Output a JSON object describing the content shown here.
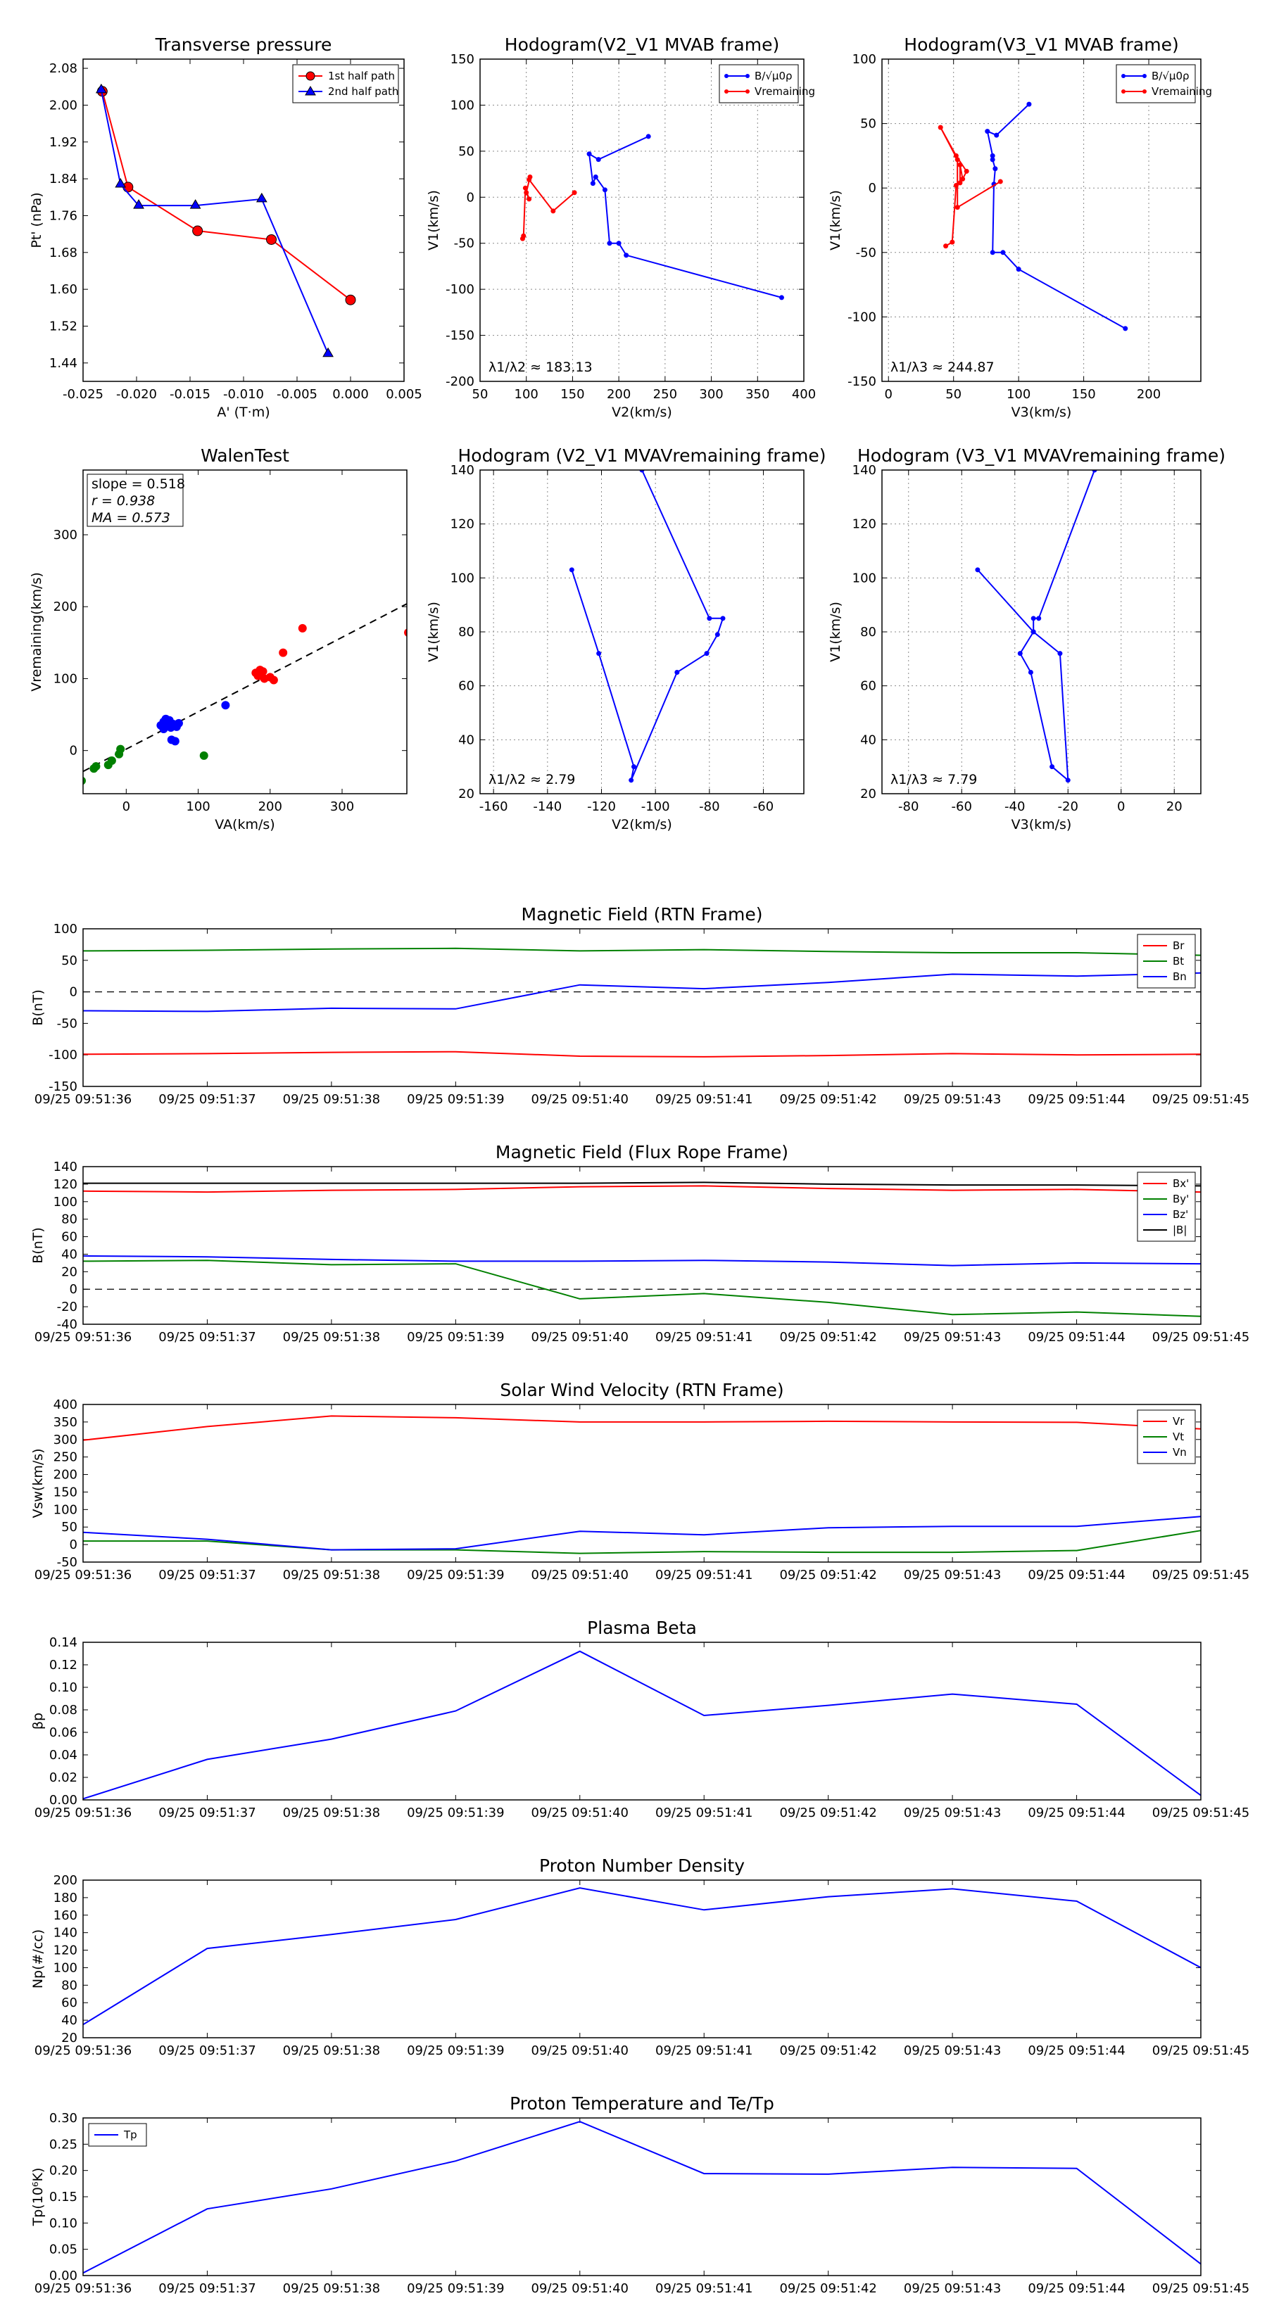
{
  "chart_data": [
    {
      "id": "tp",
      "type": "line",
      "title": "Transverse pressure",
      "xlabel": "A' (T·m)",
      "ylabel": "Pt' (nPa)",
      "xlim": [
        -0.025,
        0.005
      ],
      "ylim": [
        1.4,
        2.1
      ],
      "xticks": [
        "-0.025",
        "-0.020",
        "-0.015",
        "-0.010",
        "-0.005",
        "0.000",
        "0.005"
      ],
      "yticks": [
        "1.44",
        "1.52",
        "1.60",
        "1.68",
        "1.76",
        "1.84",
        "1.92",
        "2.00",
        "2.08"
      ],
      "legend": "top-right",
      "series": [
        {
          "name": "1st half path",
          "color": "#ff0000",
          "marker": "circle",
          "x": [
            -0.0232,
            -0.0208,
            -0.0143,
            -0.0074,
            0.0
          ],
          "y": [
            2.03,
            1.822,
            1.727,
            1.708,
            1.577
          ]
        },
        {
          "name": "2nd half path",
          "color": "#0000ff",
          "marker": "triangle",
          "x": [
            -0.0233,
            -0.0215,
            -0.0198,
            -0.0145,
            -0.0083,
            -0.0021
          ],
          "y": [
            2.033,
            1.828,
            1.782,
            1.782,
            1.796,
            1.46
          ]
        }
      ]
    },
    {
      "id": "h1",
      "type": "line",
      "title": "Hodogram(V2_V1 MVAB frame)",
      "xlabel": "V2(km/s)",
      "ylabel": "V1(km/s)",
      "xlim": [
        50,
        400
      ],
      "ylim": [
        -200,
        150
      ],
      "xticks": [
        "50",
        "100",
        "150",
        "200",
        "250",
        "300",
        "350",
        "400"
      ],
      "yticks": [
        "-200",
        "-150",
        "-100",
        "-50",
        "0",
        "50",
        "100",
        "150"
      ],
      "legend": "top-right",
      "annotation": "λ1/λ2 ≈ 183.13",
      "series": [
        {
          "name": "B/√μ0ρ",
          "color": "#0000ff",
          "x": [
            376,
            208,
            200,
            190,
            185,
            175,
            172,
            168,
            178,
            232
          ],
          "y": [
            -109,
            -63,
            -50,
            -50,
            8,
            22,
            15,
            47,
            41,
            66
          ]
        },
        {
          "name": "Vremaining",
          "color": "#ff0000",
          "x": [
            96,
            97,
            99,
            103,
            100,
            104,
            103,
            129,
            152
          ],
          "y": [
            -45,
            -42,
            10,
            -2,
            5,
            22,
            19,
            -15,
            5
          ]
        }
      ]
    },
    {
      "id": "h2",
      "type": "line",
      "title": "Hodogram(V3_V1 MVAB frame)",
      "xlabel": "V3(km/s)",
      "ylabel": "V1(km/s)",
      "xlim": [
        -5,
        240
      ],
      "ylim": [
        -150,
        100
      ],
      "xticks": [
        "0",
        "50",
        "100",
        "150",
        "200"
      ],
      "yticks": [
        "-150",
        "-100",
        "-50",
        "0",
        "50",
        "100"
      ],
      "legend": "top-right",
      "annotation": "λ1/λ3 ≈ 244.87",
      "series": [
        {
          "name": "B/√μ0ρ",
          "color": "#0000ff",
          "x": [
            182,
            100,
            88,
            80,
            81,
            82,
            80,
            80,
            76,
            83,
            108
          ],
          "y": [
            -109,
            -63,
            -50,
            -50,
            3,
            15,
            22,
            25,
            44,
            41,
            65
          ]
        },
        {
          "name": "Vremaining",
          "color": "#ff0000",
          "x": [
            44,
            49,
            52,
            55,
            55,
            57,
            60,
            52,
            40,
            53,
            53,
            86
          ],
          "y": [
            -45,
            -42,
            2,
            4,
            18,
            7,
            13,
            25,
            47,
            22,
            -15,
            5
          ]
        }
      ]
    },
    {
      "id": "walen",
      "type": "scatter",
      "title": "WalenTest",
      "xlabel": "VA(km/s)",
      "ylabel": "Vremaining(km/s)",
      "xlim": [
        -60,
        390
      ],
      "ylim": [
        -60,
        390
      ],
      "xticks": [
        "0",
        "100",
        "200",
        "300"
      ],
      "yticks": [
        "0",
        "100",
        "200",
        "300"
      ],
      "stats": {
        "slope": "slope = 0.518",
        "r": "r = 0.938",
        "ma": "MA = 0.573"
      },
      "fit": {
        "slope": 0.518,
        "intercept": 2
      },
      "series": [
        {
          "name": "red",
          "color": "#ff0000",
          "x": [
            180,
            186,
            190,
            185,
            192,
            200,
            205,
            183,
            218,
            245,
            392
          ],
          "y": [
            108,
            112,
            110,
            104,
            100,
            102,
            98,
            104,
            136,
            170,
            164
          ]
        },
        {
          "name": "green",
          "color": "#008000",
          "x": [
            -62,
            -45,
            -42,
            -25,
            -20,
            -10,
            -8,
            108
          ],
          "y": [
            -42,
            -25,
            -22,
            -20,
            -14,
            -5,
            2,
            -7
          ]
        },
        {
          "name": "blue",
          "color": "#0000ff",
          "x": [
            48,
            52,
            55,
            57,
            60,
            62,
            65,
            70,
            52,
            62,
            68,
            73,
            138,
            63,
            68
          ],
          "y": [
            35,
            40,
            44,
            38,
            42,
            35,
            37,
            33,
            30,
            32,
            36,
            38,
            63,
            15,
            13
          ]
        }
      ]
    },
    {
      "id": "h3",
      "type": "line",
      "title": "Hodogram (V2_V1 MVAVremaining frame)",
      "xlabel": "V2(km/s)",
      "ylabel": "V1(km/s)",
      "xlim": [
        -165,
        -45
      ],
      "ylim": [
        20,
        140
      ],
      "xticks": [
        "-160",
        "-140",
        "-120",
        "-100",
        "-80",
        "-60"
      ],
      "yticks": [
        "20",
        "40",
        "60",
        "80",
        "100",
        "120",
        "140"
      ],
      "annotation": "λ1/λ2 ≈ 2.79",
      "series": [
        {
          "name": "B",
          "color": "#0000ff",
          "x": [
            -131,
            -121,
            -108,
            -109,
            -92,
            -81,
            -77,
            -75,
            -80,
            -105
          ],
          "y": [
            103,
            72,
            30,
            25,
            65,
            72,
            79,
            85,
            85,
            140
          ]
        }
      ]
    },
    {
      "id": "h4",
      "type": "line",
      "title": "Hodogram (V3_V1 MVAVremaining frame)",
      "xlabel": "V3(km/s)",
      "ylabel": "V1(km/s)",
      "xlim": [
        -90,
        30
      ],
      "ylim": [
        20,
        140
      ],
      "xticks": [
        "-80",
        "-60",
        "-40",
        "-20",
        "0",
        "20"
      ],
      "yticks": [
        "20",
        "40",
        "60",
        "80",
        "100",
        "120",
        "140"
      ],
      "annotation": "λ1/λ3 ≈ 7.79",
      "series": [
        {
          "name": "B",
          "color": "#0000ff",
          "x": [
            -54,
            -33,
            -23,
            -20,
            -26,
            -34,
            -38,
            -33,
            -33,
            -31,
            -10
          ],
          "y": [
            103,
            80,
            72,
            25,
            30,
            65,
            72,
            80,
            85,
            85,
            140
          ]
        }
      ]
    },
    {
      "id": "ts1",
      "type": "line",
      "title": "Magnetic Field (RTN Frame)",
      "ylabel": "B(nT)",
      "ylim": [
        -150,
        100
      ],
      "yticks": [
        "-150",
        "-100",
        "-50",
        "0",
        "50",
        "100"
      ],
      "zero_line": true,
      "legend": "top-right",
      "categories": [
        "09/25 09:51:36",
        "09/25 09:51:37",
        "09/25 09:51:38",
        "09/25 09:51:39",
        "09/25 09:51:40",
        "09/25 09:51:41",
        "09/25 09:51:42",
        "09/25 09:51:43",
        "09/25 09:51:44",
        "09/25 09:51:45"
      ],
      "series": [
        {
          "name": "Br",
          "color": "#ff0000",
          "values": [
            -99,
            -98,
            -96,
            -95,
            -102,
            -103,
            -101,
            -98,
            -100,
            -99
          ]
        },
        {
          "name": "Bt",
          "color": "#008000",
          "values": [
            65,
            66,
            68,
            69,
            65,
            67,
            64,
            62,
            62,
            58
          ]
        },
        {
          "name": "Bn",
          "color": "#0000ff",
          "values": [
            -30,
            -31,
            -26,
            -27,
            11,
            5,
            15,
            28,
            25,
            30
          ]
        }
      ]
    },
    {
      "id": "ts2",
      "type": "line",
      "title": "Magnetic Field (Flux Rope Frame)",
      "ylabel": "B(nT)",
      "ylim": [
        -40,
        140
      ],
      "yticks": [
        "-40",
        "-20",
        "0",
        "20",
        "40",
        "60",
        "80",
        "100",
        "120",
        "140"
      ],
      "zero_line": true,
      "legend": "top-right",
      "categories": [
        "09/25 09:51:36",
        "09/25 09:51:37",
        "09/25 09:51:38",
        "09/25 09:51:39",
        "09/25 09:51:40",
        "09/25 09:51:41",
        "09/25 09:51:42",
        "09/25 09:51:43",
        "09/25 09:51:44",
        "09/25 09:51:45"
      ],
      "series": [
        {
          "name": "Bx'",
          "color": "#ff0000",
          "values": [
            112,
            111,
            113,
            114,
            117,
            118,
            115,
            113,
            114,
            111
          ]
        },
        {
          "name": "By'",
          "color": "#008000",
          "values": [
            32,
            33,
            28,
            29,
            -11,
            -5,
            -15,
            -29,
            -26,
            -31
          ]
        },
        {
          "name": "Bz'",
          "color": "#0000ff",
          "values": [
            38,
            37,
            34,
            32,
            32,
            33,
            31,
            27,
            30,
            29
          ]
        },
        {
          "name": "|B|",
          "color": "#000000",
          "values": [
            121,
            121,
            121,
            121,
            121,
            122,
            120,
            119,
            119,
            118
          ]
        }
      ]
    },
    {
      "id": "ts3",
      "type": "line",
      "title": "Solar Wind Velocity (RTN Frame)",
      "ylabel": "Vsw(km/s)",
      "ylim": [
        -50,
        400
      ],
      "yticks": [
        "-50",
        "0",
        "50",
        "100",
        "150",
        "200",
        "250",
        "300",
        "350",
        "400"
      ],
      "legend": "top-right",
      "categories": [
        "09/25 09:51:36",
        "09/25 09:51:37",
        "09/25 09:51:38",
        "09/25 09:51:39",
        "09/25 09:51:40",
        "09/25 09:51:41",
        "09/25 09:51:42",
        "09/25 09:51:43",
        "09/25 09:51:44",
        "09/25 09:51:45"
      ],
      "series": [
        {
          "name": "Vr",
          "color": "#ff0000",
          "values": [
            298,
            337,
            367,
            362,
            350,
            350,
            352,
            350,
            349,
            330
          ]
        },
        {
          "name": "Vt",
          "color": "#008000",
          "values": [
            10,
            10,
            -15,
            -15,
            -25,
            -20,
            -22,
            -22,
            -17,
            40
          ]
        },
        {
          "name": "Vn",
          "color": "#0000ff",
          "values": [
            35,
            15,
            -15,
            -12,
            38,
            28,
            48,
            52,
            52,
            80
          ]
        }
      ]
    },
    {
      "id": "ts4",
      "type": "line",
      "title": "Plasma Beta",
      "ylabel": "βp",
      "ylim": [
        0,
        0.14
      ],
      "yticks": [
        "0.00",
        "0.02",
        "0.04",
        "0.06",
        "0.08",
        "0.10",
        "0.12",
        "0.14"
      ],
      "categories": [
        "09/25 09:51:36",
        "09/25 09:51:37",
        "09/25 09:51:38",
        "09/25 09:51:39",
        "09/25 09:51:40",
        "09/25 09:51:41",
        "09/25 09:51:42",
        "09/25 09:51:43",
        "09/25 09:51:44",
        "09/25 09:51:45"
      ],
      "series": [
        {
          "name": "beta",
          "color": "#0000ff",
          "values": [
            0.001,
            0.036,
            0.054,
            0.079,
            0.132,
            0.075,
            0.084,
            0.094,
            0.085,
            0.004
          ]
        }
      ]
    },
    {
      "id": "ts5",
      "type": "line",
      "title": "Proton Number Density",
      "ylabel": "Np(#/cc)",
      "ylim": [
        20,
        200
      ],
      "yticks": [
        "20",
        "40",
        "60",
        "80",
        "100",
        "120",
        "140",
        "160",
        "180",
        "200"
      ],
      "categories": [
        "09/25 09:51:36",
        "09/25 09:51:37",
        "09/25 09:51:38",
        "09/25 09:51:39",
        "09/25 09:51:40",
        "09/25 09:51:41",
        "09/25 09:51:42",
        "09/25 09:51:43",
        "09/25 09:51:44",
        "09/25 09:51:45"
      ],
      "series": [
        {
          "name": "Np",
          "color": "#0000ff",
          "values": [
            35,
            122,
            138,
            155,
            191,
            166,
            181,
            190,
            176,
            100
          ]
        }
      ]
    },
    {
      "id": "ts6",
      "type": "line",
      "title": "Proton Temperature and Te/Tp",
      "ylabel": "Tp(10⁶K)",
      "ylim": [
        0,
        0.3
      ],
      "yticks": [
        "0.00",
        "0.05",
        "0.10",
        "0.15",
        "0.20",
        "0.25",
        "0.30"
      ],
      "legend": "top-left",
      "categories": [
        "09/25 09:51:36",
        "09/25 09:51:37",
        "09/25 09:51:38",
        "09/25 09:51:39",
        "09/25 09:51:40",
        "09/25 09:51:41",
        "09/25 09:51:42",
        "09/25 09:51:43",
        "09/25 09:51:44",
        "09/25 09:51:45"
      ],
      "series": [
        {
          "name": "Tp",
          "color": "#0000ff",
          "values": [
            0.005,
            0.127,
            0.165,
            0.218,
            0.293,
            0.194,
            0.193,
            0.206,
            0.204,
            0.022
          ]
        }
      ]
    }
  ]
}
